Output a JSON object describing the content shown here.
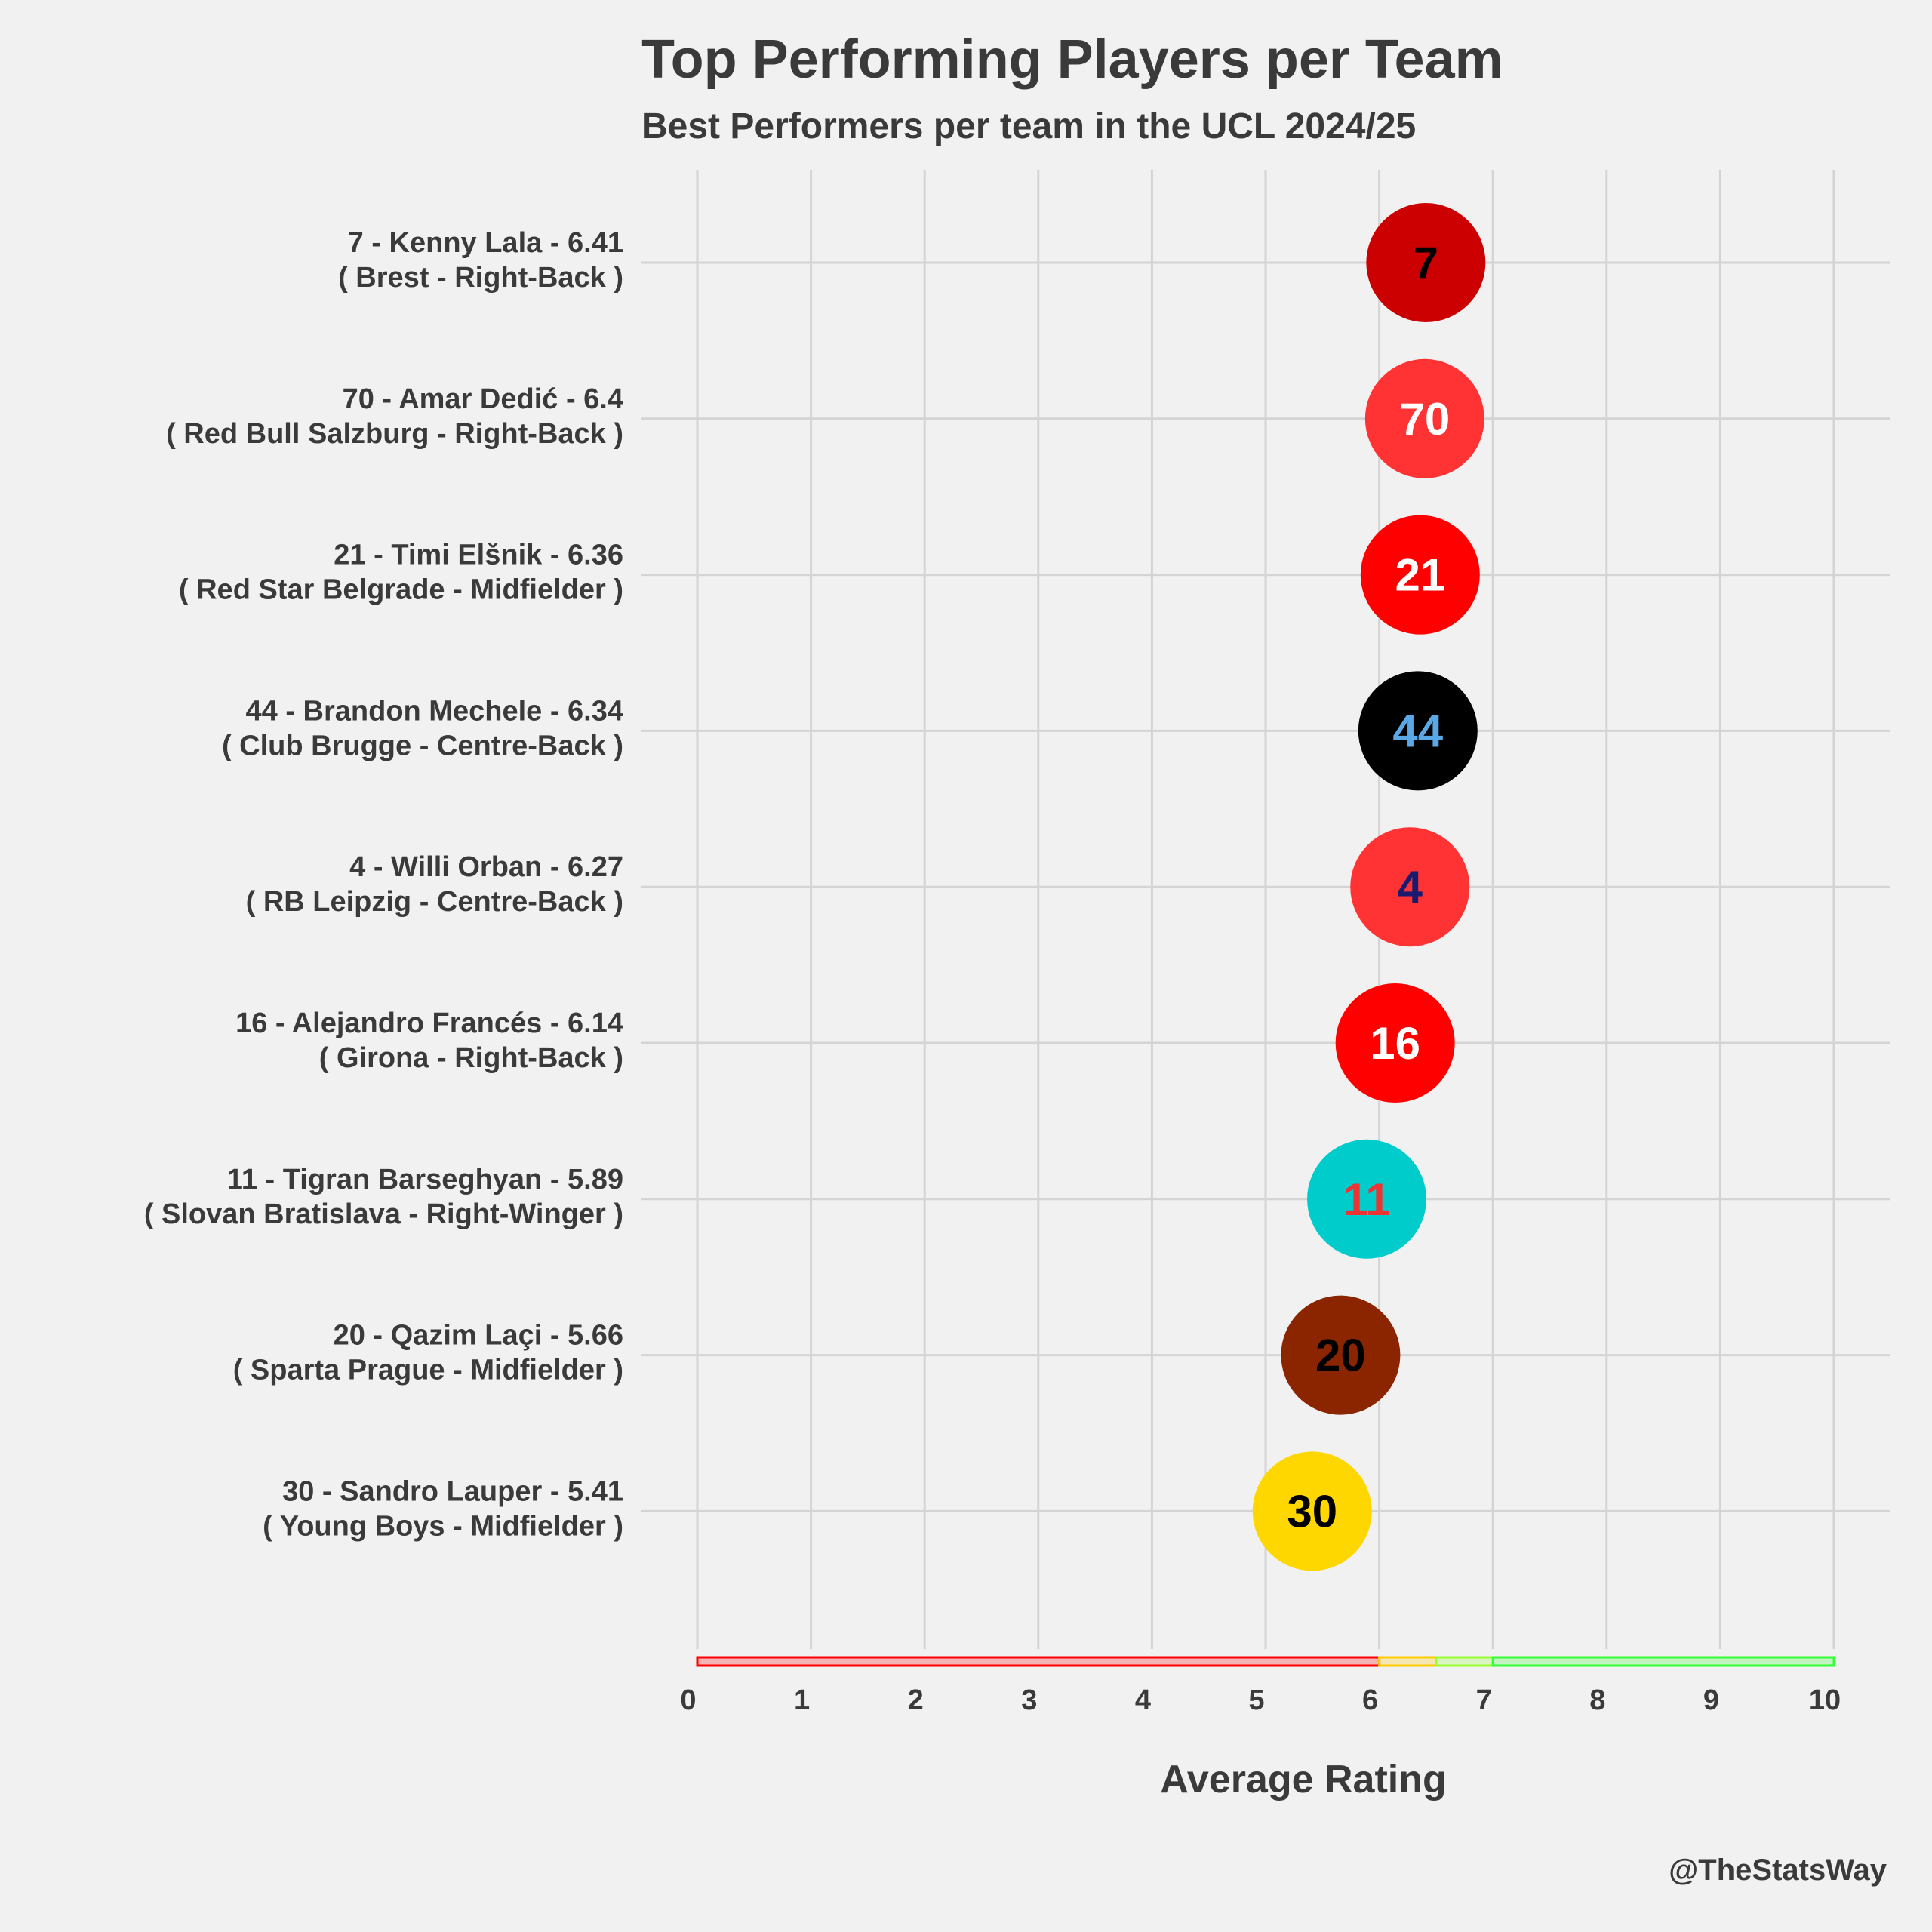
{
  "title": "Top Performing Players per Team",
  "subtitle": "Best Performers per team in the UCL 2024/25",
  "credit": "@TheStatsWay",
  "chart_data": {
    "type": "scatter",
    "title": "Top Performing Players per Team",
    "subtitle": "Best Performers per team in the UCL 2024/25",
    "xlabel": "Average Rating",
    "ylabel": "",
    "xlim": [
      0,
      10
    ],
    "xticks": [
      "0",
      "1",
      "2",
      "3",
      "4",
      "5",
      "6",
      "7",
      "8",
      "9",
      "10"
    ],
    "grid": true,
    "rating_bands": [
      {
        "from": 0,
        "to": 6,
        "color": "#ff0000"
      },
      {
        "from": 6,
        "to": 6.5,
        "color": "#ffcc00"
      },
      {
        "from": 6.5,
        "to": 7,
        "color": "#99ff33"
      },
      {
        "from": 7,
        "to": 10,
        "color": "#33ff33"
      }
    ],
    "players": [
      {
        "number": "7",
        "name": "Kenny Lala",
        "rating": 6.41,
        "team": "Brest",
        "position": "Right-Back",
        "label_line1": "7 - Kenny Lala - 6.41",
        "label_line2": "( Brest - Right-Back )",
        "fill": "#cc0000",
        "text_color": "#000000"
      },
      {
        "number": "70",
        "name": "Amar Dedić",
        "rating": 6.4,
        "team": "Red Bull Salzburg",
        "position": "Right-Back",
        "label_line1": "70 - Amar Dedić - 6.4",
        "label_line2": "( Red Bull Salzburg - Right-Back )",
        "fill": "#ff3333",
        "text_color": "#ffffff"
      },
      {
        "number": "21",
        "name": "Timi Elšnik",
        "rating": 6.36,
        "team": "Red Star Belgrade",
        "position": "Midfielder",
        "label_line1": "21 - Timi Elšnik - 6.36",
        "label_line2": "( Red Star Belgrade - Midfielder )",
        "fill": "#ff0000",
        "text_color": "#ffffff"
      },
      {
        "number": "44",
        "name": "Brandon Mechele",
        "rating": 6.34,
        "team": "Club Brugge",
        "position": "Centre-Back",
        "label_line1": "44 - Brandon Mechele - 6.34",
        "label_line2": "( Club Brugge - Centre-Back )",
        "fill": "#000000",
        "text_color": "#5aa9e6"
      },
      {
        "number": "4",
        "name": "Willi Orban",
        "rating": 6.27,
        "team": "RB Leipzig",
        "position": "Centre-Back",
        "label_line1": "4 - Willi Orban - 6.27",
        "label_line2": "( RB Leipzig - Centre-Back )",
        "fill": "#ff3333",
        "text_color": "#1a1a6e"
      },
      {
        "number": "16",
        "name": "Alejandro Francés",
        "rating": 6.14,
        "team": "Girona",
        "position": "Right-Back",
        "label_line1": "16 - Alejandro Francés - 6.14",
        "label_line2": "( Girona - Right-Back )",
        "fill": "#ff0000",
        "text_color": "#ffffff"
      },
      {
        "number": "11",
        "name": "Tigran Barseghyan",
        "rating": 5.89,
        "team": "Slovan Bratislava",
        "position": "Right-Winger",
        "label_line1": "11 - Tigran Barseghyan - 5.89",
        "label_line2": "( Slovan Bratislava - Right-Winger )",
        "fill": "#00cccc",
        "text_color": "#ee3333"
      },
      {
        "number": "20",
        "name": "Qazim Laçi",
        "rating": 5.66,
        "team": "Sparta Prague",
        "position": "Midfielder",
        "label_line1": "20 - Qazim Laçi - 5.66",
        "label_line2": "( Sparta Prague - Midfielder )",
        "fill": "#8b2500",
        "text_color": "#000000"
      },
      {
        "number": "30",
        "name": "Sandro Lauper",
        "rating": 5.41,
        "team": "Young Boys",
        "position": "Midfielder",
        "label_line1": "30 - Sandro Lauper - 5.41",
        "label_line2": "( Young Boys - Midfielder )",
        "fill": "#ffd700",
        "text_color": "#000000"
      }
    ]
  }
}
